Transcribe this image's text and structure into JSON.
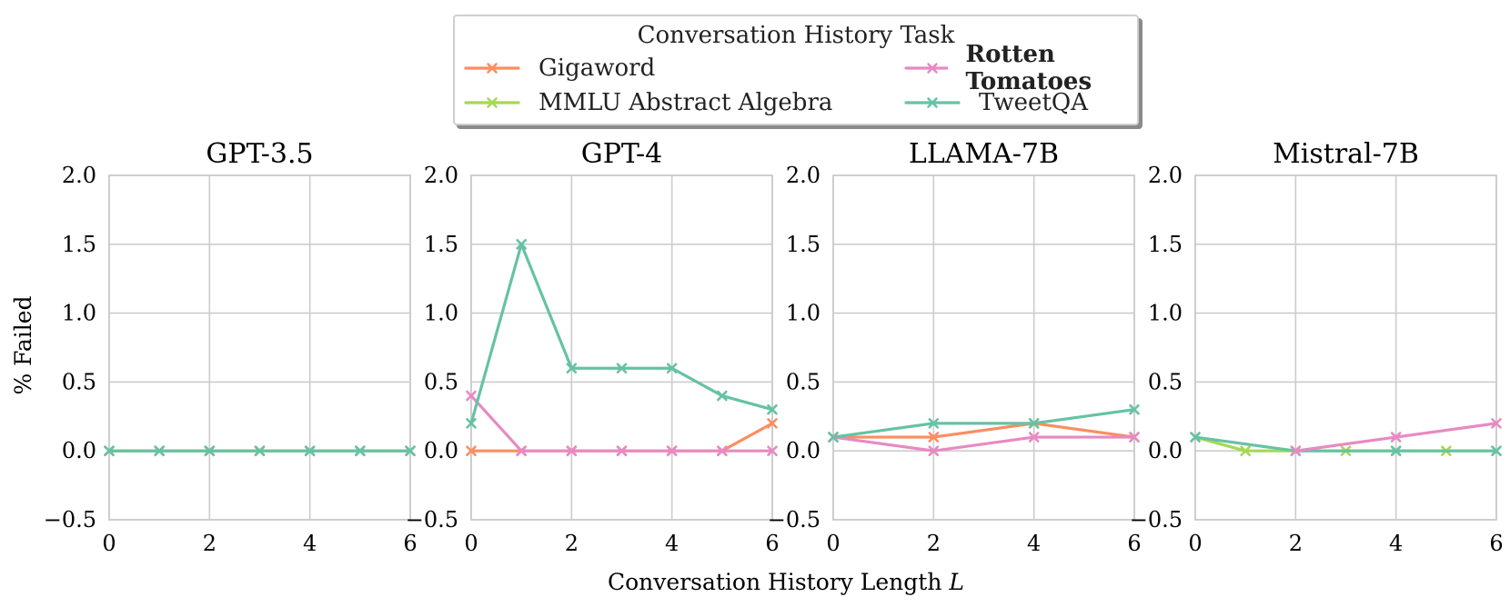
{
  "chart_data": {
    "type": "line",
    "legend": {
      "title": "Conversation History Task",
      "placement": "top-center",
      "entries": [
        {
          "name": "Gigaword",
          "color": "#FC8D62",
          "bold": false
        },
        {
          "name": "Rotten Tomatoes",
          "color": "#E78AC3",
          "bold": true
        },
        {
          "name": "MMLU Abstract Algebra",
          "color": "#A6D854",
          "bold": false
        },
        {
          "name": "TweetQA",
          "color": "#66C2A5",
          "bold": false
        }
      ]
    },
    "xlabel": "Conversation History Length",
    "xlabel_symbol": "L",
    "ylabel": "% Failed",
    "xlim": [
      0,
      6
    ],
    "ylim": [
      -0.5,
      2.0
    ],
    "xticks": [
      "0",
      "2",
      "4",
      "6"
    ],
    "yticks": [
      "2.0",
      "1.5",
      "1.0",
      "0.5",
      "0.0",
      "−0.5"
    ],
    "xtick_values": [
      0,
      2,
      4,
      6
    ],
    "ytick_values": [
      2.0,
      1.5,
      1.0,
      0.5,
      0.0,
      -0.5
    ],
    "grid": true,
    "marker": "x",
    "panels": [
      {
        "title": "GPT-3.5",
        "series": [
          {
            "name": "Gigaword",
            "x": [
              0,
              1,
              2,
              3,
              4,
              5,
              6
            ],
            "y": [
              0,
              0,
              0,
              0,
              0,
              0,
              0
            ]
          },
          {
            "name": "Rotten Tomatoes",
            "x": [
              0,
              1,
              2,
              3,
              4,
              5,
              6
            ],
            "y": [
              0,
              0,
              0,
              0,
              0,
              0,
              0
            ]
          },
          {
            "name": "MMLU Abstract Algebra",
            "x": [
              0,
              1,
              2,
              3,
              4,
              5,
              6
            ],
            "y": [
              0,
              0,
              0,
              0,
              0,
              0,
              0
            ]
          },
          {
            "name": "TweetQA",
            "x": [
              0,
              1,
              2,
              3,
              4,
              5,
              6
            ],
            "y": [
              0,
              0,
              0,
              0,
              0,
              0,
              0
            ]
          }
        ]
      },
      {
        "title": "GPT-4",
        "series": [
          {
            "name": "Gigaword",
            "x": [
              0,
              1,
              2,
              3,
              4,
              5,
              6
            ],
            "y": [
              0,
              0,
              0,
              0,
              0,
              0,
              0.2
            ]
          },
          {
            "name": "Rotten Tomatoes",
            "x": [
              0,
              1,
              2,
              3,
              4,
              5,
              6
            ],
            "y": [
              0.4,
              0,
              0,
              0,
              0,
              0,
              0
            ]
          },
          {
            "name": "TweetQA",
            "x": [
              0,
              1,
              2,
              3,
              4,
              5,
              6
            ],
            "y": [
              0.2,
              1.5,
              0.6,
              0.6,
              0.6,
              0.4,
              0.3
            ]
          }
        ]
      },
      {
        "title": "LLAMA-7B",
        "series": [
          {
            "name": "Gigaword",
            "x": [
              0,
              2,
              4,
              6
            ],
            "y": [
              0.1,
              0.1,
              0.2,
              0.1
            ]
          },
          {
            "name": "Rotten Tomatoes",
            "x": [
              0,
              2,
              4,
              6
            ],
            "y": [
              0.1,
              0,
              0.1,
              0.1
            ]
          },
          {
            "name": "TweetQA",
            "x": [
              0,
              2,
              4,
              6
            ],
            "y": [
              0.1,
              0.2,
              0.2,
              0.3
            ]
          }
        ]
      },
      {
        "title": "Mistral-7B",
        "series": [
          {
            "name": "MMLU Abstract Algebra",
            "x": [
              0,
              1,
              2,
              3,
              4,
              5,
              6
            ],
            "y": [
              0.1,
              0,
              0,
              0,
              0,
              0,
              0
            ]
          },
          {
            "name": "TweetQA",
            "x": [
              0,
              2,
              4,
              6
            ],
            "y": [
              0.1,
              0,
              0,
              0
            ]
          },
          {
            "name": "Rotten Tomatoes",
            "x": [
              2,
              4,
              6
            ],
            "y": [
              0,
              0.1,
              0.2
            ]
          }
        ]
      }
    ]
  }
}
